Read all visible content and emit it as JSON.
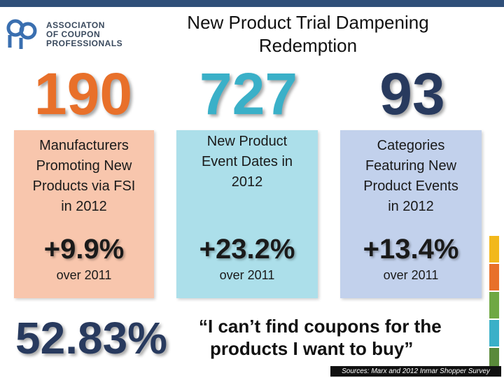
{
  "logo": {
    "lines": [
      "ASSOCIATON",
      "OF COUPON",
      "PROFESSIONALS"
    ]
  },
  "title": {
    "line1": "New Product Trial Dampening",
    "line2": "Redemption"
  },
  "stats": [
    {
      "big_number": "190",
      "description": [
        "Manufacturers",
        "Promoting New",
        "Products via FSI",
        "in 2012"
      ],
      "change": "+9.9%",
      "change_note": "over 2011",
      "color": "#e8702a"
    },
    {
      "big_number": "727",
      "description": [
        "New Product",
        "Event Dates in",
        "2012"
      ],
      "change": "+23.2%",
      "change_note": "over 2011",
      "color": "#3ab0c8"
    },
    {
      "big_number": "93",
      "description": [
        "Categories",
        "Featuring New",
        "Product Events",
        "in 2012"
      ],
      "change": "+13.4%",
      "change_note": "over 2011",
      "color": "#283a5e"
    }
  ],
  "bottom": {
    "percentage": "52.83%",
    "quote_line1": "“I can’t find coupons for the",
    "quote_line2": "products I want to buy”"
  },
  "sources": "Sources: Marx and 2012 Inmar Shopper Survey",
  "colors": {
    "top_border": "#2f4f79",
    "side_bars": [
      "#f2b81c",
      "#e8702a",
      "#6fa843",
      "#3ab0c8",
      "#5a8a3a"
    ]
  }
}
